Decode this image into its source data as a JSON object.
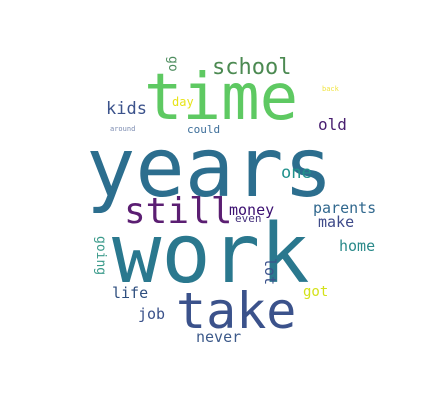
{
  "words": {
    "years": {
      "text": "years",
      "color": "#2c6e8e"
    },
    "work": {
      "text": "work",
      "color": "#2a788e"
    },
    "time": {
      "text": "time",
      "color": "#5ec962"
    },
    "take": {
      "text": "take",
      "color": "#3b528b"
    },
    "still": {
      "text": "still",
      "color": "#5b1e72"
    },
    "school": {
      "text": "school",
      "color": "#4c8a52"
    },
    "go": {
      "text": "go",
      "color": "#4e8d5f"
    },
    "kids": {
      "text": "kids",
      "color": "#3b528b"
    },
    "old": {
      "text": "old",
      "color": "#481f70"
    },
    "day": {
      "text": "day",
      "color": "#e7e419"
    },
    "could": {
      "text": "could",
      "color": "#3e6f9a"
    },
    "around": {
      "text": "around",
      "color": "#7a8ab0"
    },
    "back": {
      "text": "back",
      "color": "#f0e442"
    },
    "one": {
      "text": "one",
      "color": "#21918c"
    },
    "money": {
      "text": "money",
      "color": "#3b0f70"
    },
    "even": {
      "text": "even",
      "color": "#46327e"
    },
    "parents": {
      "text": "parents",
      "color": "#31688e"
    },
    "make": {
      "text": "make",
      "color": "#3e4a89"
    },
    "home": {
      "text": "home",
      "color": "#2a8a8a"
    },
    "going": {
      "text": "going",
      "color": "#3a9a8a"
    },
    "lot": {
      "text": "lot",
      "color": "#3b528b"
    },
    "got": {
      "text": "got",
      "color": "#d4e21a"
    },
    "life": {
      "text": "life",
      "color": "#2f4f7f"
    },
    "job": {
      "text": "job",
      "color": "#3b528b"
    },
    "never": {
      "text": "never",
      "color": "#3d5a8a"
    }
  }
}
